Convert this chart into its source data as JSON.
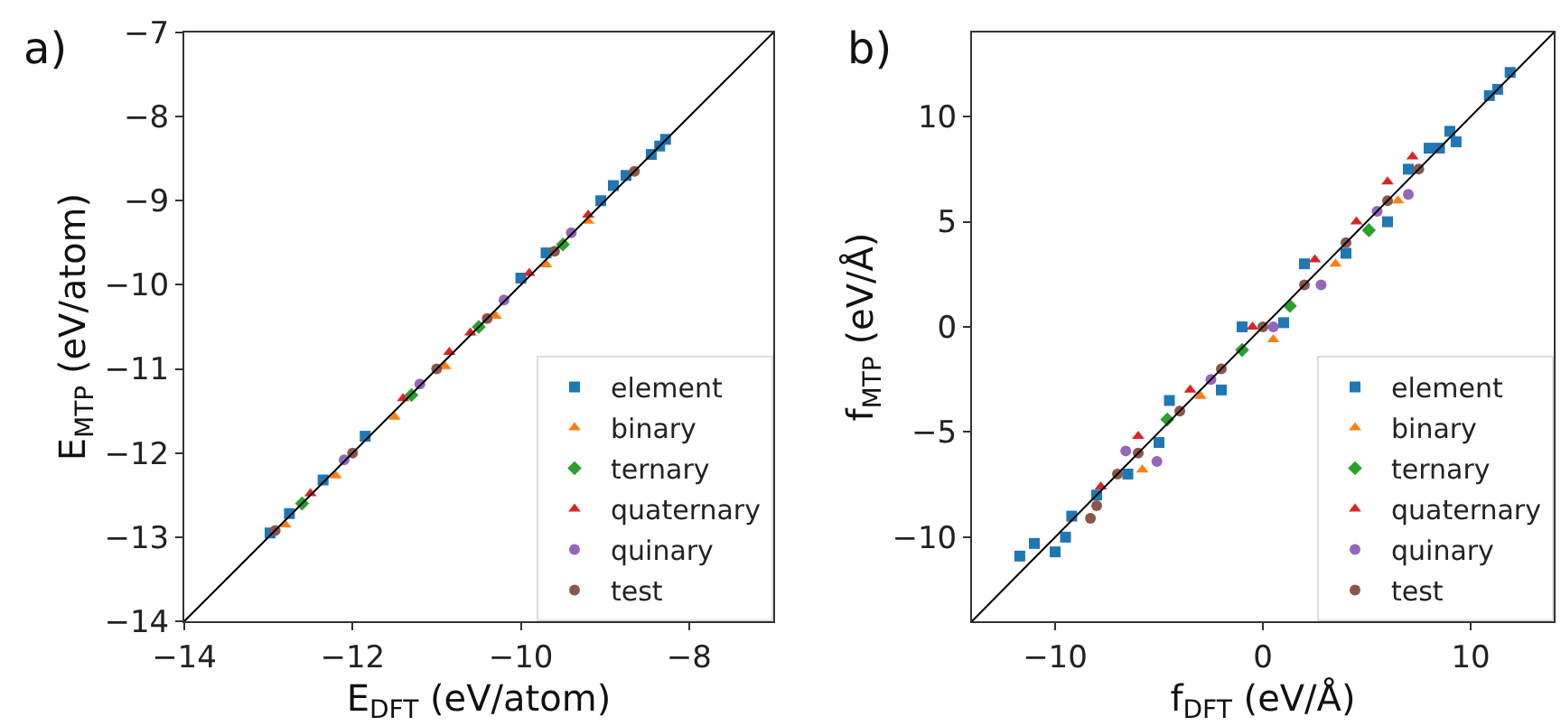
{
  "chart_data": [
    {
      "type": "scatter",
      "xlabel": "E$_{DFT}$ (eV/atom)",
      "ylabel": "E$_{MTP}$ (eV/atom)",
      "annotations": [
        "a)"
      ],
      "xlim": [
        -14,
        -7
      ],
      "ylim": [
        -14,
        -7
      ],
      "xticks": [
        -14,
        -12,
        -10,
        -8
      ],
      "yticks": [
        -14,
        -13,
        -12,
        -11,
        -10,
        -9,
        -8,
        -7
      ],
      "grid": false,
      "legend": "bottom right",
      "series": [
        {
          "name": "element",
          "color": "#1f77b4",
          "marker": "square",
          "x": [
            -12.98,
            -12.75,
            -12.35,
            -11.85,
            -10.0,
            -9.7,
            -9.05,
            -8.9,
            -8.75,
            -8.45,
            -8.35,
            -8.28
          ],
          "values": [
            -12.95,
            -12.72,
            -12.32,
            -11.8,
            -9.92,
            -9.62,
            -9.0,
            -8.82,
            -8.7,
            -8.45,
            -8.35,
            -8.27
          ]
        },
        {
          "name": "binary",
          "color": "#ff7f0e",
          "marker": "triangle",
          "x": [
            -12.8,
            -12.2,
            -11.5,
            -10.9,
            -10.3,
            -9.7,
            -9.2
          ],
          "values": [
            -12.85,
            -12.27,
            -11.57,
            -10.97,
            -10.37,
            -9.76,
            -9.24
          ]
        },
        {
          "name": "ternary",
          "color": "#2ca02c",
          "marker": "diamond",
          "x": [
            -12.6,
            -11.3,
            -10.5,
            -9.5
          ],
          "values": [
            -12.6,
            -11.31,
            -10.5,
            -9.52
          ]
        },
        {
          "name": "quaternary",
          "color": "#d62728",
          "marker": "triangle",
          "x": [
            -12.5,
            -11.4,
            -10.85,
            -10.6,
            -9.9,
            -9.2
          ],
          "values": [
            -12.48,
            -11.35,
            -10.8,
            -10.57,
            -9.86,
            -9.17
          ]
        },
        {
          "name": "quinary",
          "color": "#9467bd",
          "marker": "circle",
          "x": [
            -12.1,
            -11.2,
            -10.2,
            -9.4
          ],
          "values": [
            -12.08,
            -11.18,
            -10.18,
            -9.38
          ]
        },
        {
          "name": "test",
          "color": "#8c564b",
          "marker": "circle",
          "x": [
            -12.92,
            -12.0,
            -11.0,
            -10.4,
            -9.6,
            -8.65
          ],
          "values": [
            -12.92,
            -12.0,
            -11.0,
            -10.4,
            -9.6,
            -8.65
          ]
        },
        {
          "type": "line",
          "color": "#000000",
          "marker": "none",
          "x": [
            -14,
            -7
          ],
          "values": [
            -14,
            -7
          ]
        }
      ]
    },
    {
      "type": "scatter",
      "xlabel": "f$_{DFT}$ (eV/Å)",
      "ylabel": "f$_{MTP}$ (eV/Å)",
      "annotations": [
        "b)"
      ],
      "xlim": [
        -14,
        14
      ],
      "ylim": [
        -14,
        14
      ],
      "xticks": [
        -10,
        0,
        10
      ],
      "yticks": [
        -10,
        -5,
        0,
        5,
        10
      ],
      "grid": false,
      "legend": "bottom right",
      "series": [
        {
          "name": "element",
          "color": "#1f77b4",
          "marker": "square",
          "x": [
            -11.7,
            -11.0,
            -10.0,
            -9.5,
            -9.2,
            -8.0,
            -6.5,
            -5.0,
            -4.5,
            -2.0,
            -1.0,
            1.0,
            2.0,
            4.0,
            6.0,
            7.0,
            8.0,
            8.5,
            9.0,
            9.3,
            10.9,
            11.3,
            11.9
          ],
          "values": [
            -10.9,
            -10.3,
            -10.7,
            -10.0,
            -9.0,
            -8.0,
            -7.0,
            -5.5,
            -3.5,
            -3.0,
            0.0,
            0.2,
            3.0,
            3.5,
            5.0,
            7.5,
            8.5,
            8.5,
            9.3,
            8.8,
            11.0,
            11.3,
            12.1
          ]
        },
        {
          "name": "binary",
          "color": "#ff7f0e",
          "marker": "triangle",
          "x": [
            -5.8,
            -3.0,
            0.5,
            3.5,
            6.5
          ],
          "values": [
            -6.8,
            -3.3,
            -0.6,
            3.0,
            6.0
          ]
        },
        {
          "name": "ternary",
          "color": "#2ca02c",
          "marker": "diamond",
          "x": [
            -4.6,
            -1.0,
            1.3,
            5.1
          ],
          "values": [
            -4.4,
            -1.1,
            1.0,
            4.6
          ]
        },
        {
          "name": "quaternary",
          "color": "#d62728",
          "marker": "triangle",
          "x": [
            -7.8,
            -6.0,
            -3.5,
            -0.5,
            2.5,
            4.5,
            6.0,
            7.2
          ],
          "values": [
            -7.6,
            -5.2,
            -3.0,
            0.0,
            3.2,
            5.0,
            6.9,
            8.1
          ]
        },
        {
          "name": "quinary",
          "color": "#9467bd",
          "marker": "circle",
          "x": [
            -6.6,
            -5.1,
            -2.5,
            0.5,
            2.8,
            5.5,
            7.0
          ],
          "values": [
            -5.9,
            -6.4,
            -2.5,
            0.0,
            2.0,
            5.5,
            6.3
          ]
        },
        {
          "name": "test",
          "color": "#8c564b",
          "marker": "circle",
          "x": [
            -8.3,
            -8.0,
            -7.0,
            -6.0,
            -4.0,
            -2.0,
            0.0,
            2.0,
            4.0,
            6.0,
            7.5
          ],
          "values": [
            -9.1,
            -8.5,
            -7.0,
            -6.0,
            -4.0,
            -2.0,
            0.0,
            2.0,
            4.0,
            6.0,
            7.5
          ]
        },
        {
          "type": "line",
          "color": "#000000",
          "marker": "none",
          "x": [
            -14,
            14
          ],
          "values": [
            -14,
            14
          ]
        }
      ]
    }
  ]
}
